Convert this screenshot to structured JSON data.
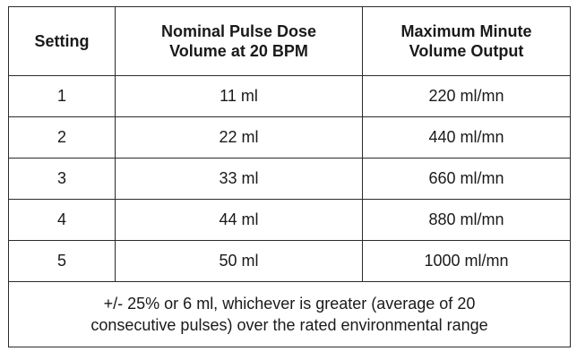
{
  "table": {
    "headers": [
      {
        "line1": "Setting",
        "line2": ""
      },
      {
        "line1": "Nominal Pulse Dose",
        "line2": "Volume at 20 BPM"
      },
      {
        "line1": "Maximum Minute",
        "line2": "Volume Output"
      }
    ],
    "rows": [
      {
        "setting": "1",
        "dose": "11 ml",
        "minute": "220 ml/mn"
      },
      {
        "setting": "2",
        "dose": "22 ml",
        "minute": "440 ml/mn"
      },
      {
        "setting": "3",
        "dose": "33 ml",
        "minute": "660 ml/mn"
      },
      {
        "setting": "4",
        "dose": "44 ml",
        "minute": "880 ml/mn"
      },
      {
        "setting": "5",
        "dose": "50 ml",
        "minute": "1000 ml/mn"
      }
    ],
    "footnote": {
      "line1": "+/- 25% or 6 ml, whichever is greater (average of 20",
      "line2": "consecutive pulses) over the rated environmental range"
    }
  }
}
